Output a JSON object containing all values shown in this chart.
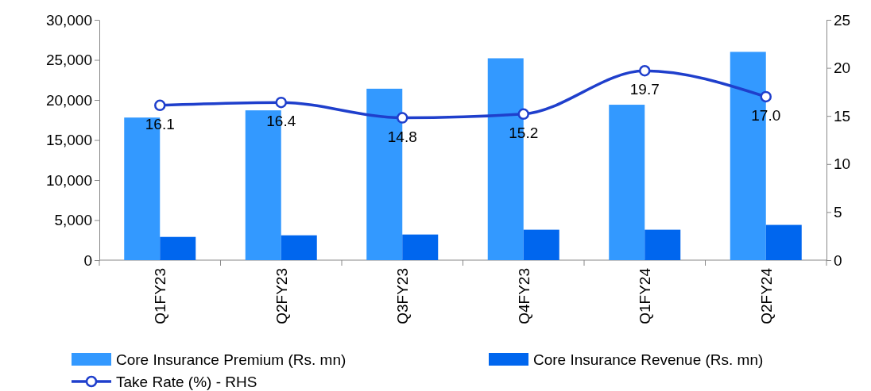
{
  "chart_data": {
    "type": "bar",
    "categories": [
      "Q1FY23",
      "Q2FY23",
      "Q3FY23",
      "Q4FY23",
      "Q1FY24",
      "Q2FY24"
    ],
    "series": [
      {
        "name": "Core Insurance Premium (Rs. mn)",
        "color": "#3399ff",
        "values": [
          17800,
          18700,
          21400,
          25200,
          19400,
          26000
        ]
      },
      {
        "name": "Core Insurance Revenue (Rs. mn)",
        "color": "#0066ee",
        "values": [
          2900,
          3100,
          3200,
          3800,
          3800,
          4400
        ]
      },
      {
        "name": "Take Rate (%) - RHS",
        "type": "line",
        "axis": "y2",
        "color": "#1f3fcc",
        "marker": "circle",
        "values": [
          16.1,
          16.4,
          14.8,
          15.2,
          19.7,
          17.0
        ],
        "value_labels": [
          "16.1",
          "16.4",
          "14.8",
          "15.2",
          "19.7",
          "17.0"
        ]
      }
    ],
    "ylim": [
      0,
      30000
    ],
    "yticks": [
      {
        "value": 0,
        "label": "0"
      },
      {
        "value": 5000,
        "label": "5,000"
      },
      {
        "value": 10000,
        "label": "10,000"
      },
      {
        "value": 15000,
        "label": "15,000"
      },
      {
        "value": 20000,
        "label": "20,000"
      },
      {
        "value": 25000,
        "label": "25,000"
      },
      {
        "value": 30000,
        "label": "30,000"
      }
    ],
    "y2lim": [
      0,
      25
    ],
    "y2ticks": [
      0,
      5,
      10,
      15,
      20,
      25
    ],
    "grid": false,
    "legend": "bottom"
  }
}
